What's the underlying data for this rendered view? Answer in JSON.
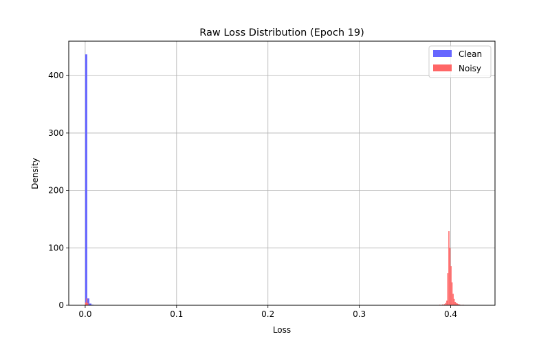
{
  "chart_data": {
    "type": "histogram",
    "title": "Raw Loss Distribution (Epoch 19)",
    "xlabel": "Loss",
    "ylabel": "Density",
    "xlim": [
      -0.018,
      0.4485
    ],
    "ylim": [
      0,
      460
    ],
    "xticks": [
      0.0,
      0.1,
      0.2,
      0.3,
      0.4
    ],
    "xtick_labels": [
      "0.0",
      "0.1",
      "0.2",
      "0.3",
      "0.4"
    ],
    "yticks": [
      0,
      100,
      200,
      300,
      400
    ],
    "ytick_labels": [
      "0",
      "100",
      "200",
      "300",
      "400"
    ],
    "grid": true,
    "legend_position": "upper right",
    "series": [
      {
        "name": "Clean",
        "color": "#6666ff",
        "bin_width": 0.00227,
        "bins": [
          {
            "x0": 0.0,
            "density": 437
          },
          {
            "x0": 0.00227,
            "density": 12
          },
          {
            "x0": 0.00454,
            "density": 3
          },
          {
            "x0": 0.00681,
            "density": 1
          }
        ]
      },
      {
        "name": "Noisy",
        "color": "#ff6666",
        "bin_width": 0.00115,
        "bins": [
          {
            "x0": 0.0,
            "density": 5
          },
          {
            "x0": 0.00115,
            "density": 12
          },
          {
            "x0": 0.0023,
            "density": 4
          },
          {
            "x0": 0.385,
            "density": 0.5
          },
          {
            "x0": 0.3875,
            "density": 1
          },
          {
            "x0": 0.3905,
            "density": 1.5
          },
          {
            "x0": 0.3925,
            "density": 2
          },
          {
            "x0": 0.394,
            "density": 4
          },
          {
            "x0": 0.3952,
            "density": 8
          },
          {
            "x0": 0.3963,
            "density": 56
          },
          {
            "x0": 0.3975,
            "density": 129
          },
          {
            "x0": 0.3986,
            "density": 100
          },
          {
            "x0": 0.3998,
            "density": 68
          },
          {
            "x0": 0.4009,
            "density": 40
          },
          {
            "x0": 0.4021,
            "density": 20
          },
          {
            "x0": 0.4032,
            "density": 11
          },
          {
            "x0": 0.4044,
            "density": 6
          },
          {
            "x0": 0.4055,
            "density": 4
          },
          {
            "x0": 0.4067,
            "density": 3
          },
          {
            "x0": 0.4078,
            "density": 2
          },
          {
            "x0": 0.409,
            "density": 1.5
          },
          {
            "x0": 0.4105,
            "density": 1
          },
          {
            "x0": 0.413,
            "density": 1
          },
          {
            "x0": 0.4165,
            "density": 0.5
          }
        ]
      }
    ]
  }
}
